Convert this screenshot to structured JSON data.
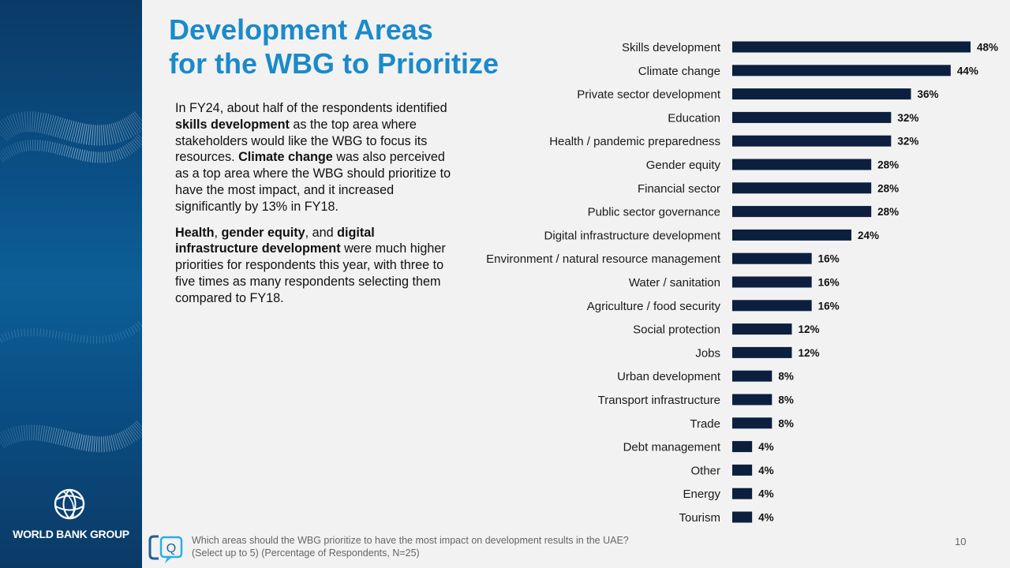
{
  "title": {
    "line1": "Development Areas",
    "line2": "for the WBG to Prioritize"
  },
  "body": {
    "p1": {
      "a": "In FY24, about half of the respondents identified ",
      "b": "skills development",
      "c": " as the top area where stakeholders would like the WBG to focus its resources. ",
      "d": "Climate change",
      "e": " was also perceived as a top area where the WBG should prioritize to have the most impact, and it increased significantly by 13% in FY18."
    },
    "p2": {
      "a": "Health",
      "b": ", ",
      "c": "gender equity",
      "d": ", and ",
      "e": "digital infrastructure development",
      "f": " were much higher priorities for respondents this year, with three to five times as many respondents selecting them compared to FY18."
    }
  },
  "footnote": {
    "line1": "Which areas should the WBG prioritize to have the most impact on development results in the UAE?",
    "line2": "(Select up to 5) (Percentage of Respondents, N=25)"
  },
  "page_number": "10",
  "logo": {
    "text": "WORLD BANK GROUP",
    "icon": "globe-icon"
  },
  "colors": {
    "bar": "#0c1f3f",
    "title": "#1b8ac9",
    "sidebar": "#0a4f85"
  },
  "chart_data": {
    "type": "bar",
    "orientation": "horizontal",
    "categories": [
      "Skills development",
      "Climate change",
      "Private sector development",
      "Education",
      "Health / pandemic preparedness",
      "Gender equity",
      "Financial sector",
      "Public sector governance",
      "Digital infrastructure development",
      "Environment / natural resource management",
      "Water / sanitation",
      "Agriculture / food security",
      "Social protection",
      "Jobs",
      "Urban development",
      "Transport infrastructure",
      "Trade",
      "Debt management",
      "Other",
      "Energy",
      "Tourism"
    ],
    "values": [
      48,
      44,
      36,
      32,
      32,
      28,
      28,
      28,
      24,
      16,
      16,
      16,
      12,
      12,
      8,
      8,
      8,
      4,
      4,
      4,
      4
    ],
    "value_labels": [
      "48%",
      "44%",
      "36%",
      "32%",
      "32%",
      "28%",
      "28%",
      "28%",
      "24%",
      "16%",
      "16%",
      "16%",
      "12%",
      "12%",
      "8%",
      "8%",
      "8%",
      "4%",
      "4%",
      "4%",
      "4%"
    ],
    "unit": "%",
    "xlim": [
      0,
      48
    ],
    "grid": false,
    "legend": "none"
  }
}
